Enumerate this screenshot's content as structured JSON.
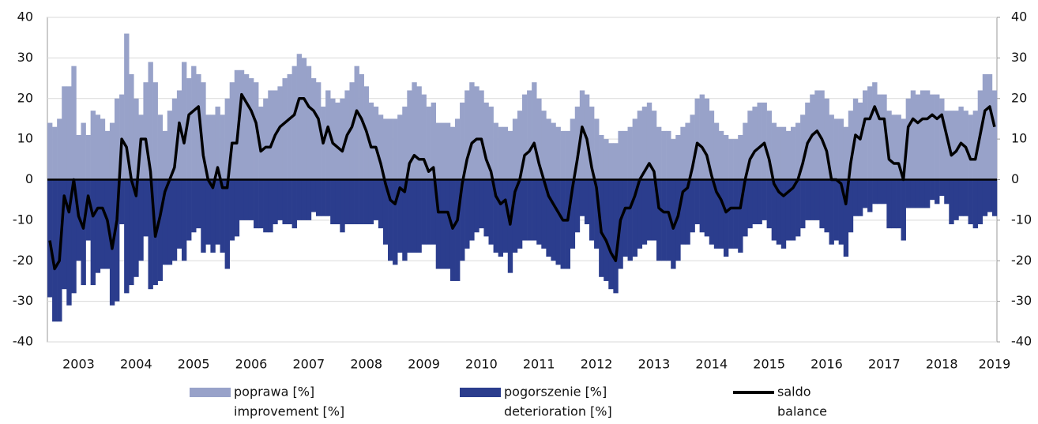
{
  "chart_data": {
    "type": "bar_line",
    "categories": [
      null,
      null,
      null,
      null,
      null,
      null,
      "2003",
      null,
      null,
      null,
      null,
      null,
      null,
      null,
      null,
      null,
      null,
      null,
      "2004",
      null,
      null,
      null,
      null,
      null,
      null,
      null,
      null,
      null,
      null,
      null,
      "2005",
      null,
      null,
      null,
      null,
      null,
      null,
      null,
      null,
      null,
      null,
      null,
      "2006",
      null,
      null,
      null,
      null,
      null,
      null,
      null,
      null,
      null,
      null,
      null,
      "2007",
      null,
      null,
      null,
      null,
      null,
      null,
      null,
      null,
      null,
      null,
      null,
      "2008",
      null,
      null,
      null,
      null,
      null,
      null,
      null,
      null,
      null,
      null,
      null,
      "2009",
      null,
      null,
      null,
      null,
      null,
      null,
      null,
      null,
      null,
      null,
      null,
      "2010",
      null,
      null,
      null,
      null,
      null,
      null,
      null,
      null,
      null,
      null,
      null,
      "2011",
      null,
      null,
      null,
      null,
      null,
      null,
      null,
      null,
      null,
      null,
      null,
      "2012",
      null,
      null,
      null,
      null,
      null,
      null,
      null,
      null,
      null,
      null,
      null,
      "2013",
      null,
      null,
      null,
      null,
      null,
      null,
      null,
      null,
      null,
      null,
      null,
      "2014",
      null,
      null,
      null,
      null,
      null,
      null,
      null,
      null,
      null,
      null,
      null,
      "2015",
      null,
      null,
      null,
      null,
      null,
      null,
      null,
      null,
      null,
      null,
      null,
      "2016",
      null,
      null,
      null,
      null,
      null,
      null,
      null,
      null,
      null,
      null,
      null,
      "2017",
      null,
      null,
      null,
      null,
      null,
      null,
      null,
      null,
      null,
      null,
      null,
      "2018",
      null,
      null,
      null,
      null,
      null,
      null,
      null,
      null,
      null,
      null,
      "2019"
    ],
    "series": [
      {
        "name": [
          "poprawa [%]",
          "improvement [%]"
        ],
        "kind": "bar",
        "color": "#98a2c9",
        "values": [
          14,
          13,
          15,
          23,
          23,
          28,
          11,
          14,
          11,
          17,
          16,
          15,
          12,
          14,
          20,
          21,
          36,
          26,
          20,
          16,
          24,
          29,
          24,
          16,
          12,
          17,
          20,
          22,
          29,
          25,
          28,
          26,
          24,
          16,
          16,
          18,
          16,
          20,
          24,
          27,
          27,
          26,
          25,
          24,
          18,
          20,
          22,
          22,
          23,
          25,
          26,
          28,
          31,
          30,
          28,
          25,
          24,
          18,
          22,
          20,
          19,
          20,
          22,
          24,
          28,
          26,
          23,
          19,
          18,
          16,
          15,
          15,
          15,
          16,
          18,
          22,
          24,
          23,
          21,
          18,
          19,
          14,
          14,
          14,
          13,
          15,
          19,
          22,
          24,
          23,
          22,
          19,
          18,
          14,
          13,
          13,
          12,
          15,
          17,
          21,
          22,
          24,
          20,
          17,
          15,
          14,
          13,
          12,
          12,
          15,
          18,
          22,
          21,
          18,
          15,
          11,
          10,
          9,
          9,
          12,
          12,
          13,
          15,
          17,
          18,
          19,
          17,
          13,
          12,
          12,
          10,
          11,
          13,
          14,
          16,
          20,
          21,
          20,
          17,
          14,
          12,
          11,
          10,
          10,
          11,
          14,
          17,
          18,
          19,
          19,
          17,
          14,
          13,
          13,
          12,
          13,
          14,
          16,
          19,
          21,
          22,
          22,
          20,
          16,
          15,
          15,
          13,
          17,
          20,
          19,
          22,
          23,
          24,
          21,
          21,
          17,
          16,
          16,
          15,
          20,
          22,
          21,
          22,
          22,
          21,
          21,
          20,
          17,
          17,
          17,
          18,
          17,
          16,
          17,
          22,
          26,
          26,
          22
        ]
      },
      {
        "name": [
          "pogorszenie [%]",
          "deterioration [%]"
        ],
        "kind": "bar",
        "color": "#2b3d8d",
        "values": [
          -29,
          -35,
          -35,
          -27,
          -31,
          -28,
          -20,
          -26,
          -15,
          -26,
          -23,
          -22,
          -22,
          -31,
          -30,
          -11,
          -28,
          -26,
          -24,
          -20,
          -14,
          -27,
          -26,
          -25,
          -21,
          -21,
          -20,
          -17,
          -20,
          -15,
          -13,
          -12,
          -18,
          -16,
          -18,
          -16,
          -18,
          -22,
          -15,
          -14,
          -10,
          -10,
          -10,
          -12,
          -12,
          -13,
          -13,
          -11,
          -10,
          -11,
          -11,
          -12,
          -10,
          -10,
          -10,
          -8,
          -9,
          -9,
          -9,
          -11,
          -11,
          -13,
          -11,
          -11,
          -11,
          -11,
          -11,
          -11,
          -10,
          -12,
          -16,
          -20,
          -21,
          -18,
          -20,
          -18,
          -18,
          -18,
          -16,
          -16,
          -16,
          -22,
          -22,
          -22,
          -25,
          -25,
          -20,
          -17,
          -15,
          -13,
          -12,
          -14,
          -16,
          -18,
          -19,
          -18,
          -23,
          -18,
          -17,
          -15,
          -15,
          -15,
          -16,
          -17,
          -19,
          -20,
          -21,
          -22,
          -22,
          -17,
          -13,
          -9,
          -11,
          -15,
          -17,
          -24,
          -25,
          -27,
          -28,
          -22,
          -19,
          -20,
          -19,
          -17,
          -16,
          -15,
          -15,
          -20,
          -20,
          -20,
          -22,
          -20,
          -16,
          -16,
          -13,
          -11,
          -13,
          -14,
          -16,
          -17,
          -17,
          -19,
          -17,
          -17,
          -18,
          -14,
          -12,
          -11,
          -11,
          -10,
          -12,
          -15,
          -16,
          -17,
          -15,
          -15,
          -14,
          -12,
          -10,
          -10,
          -10,
          -12,
          -13,
          -16,
          -15,
          -16,
          -19,
          -13,
          -9,
          -9,
          -7,
          -8,
          -6,
          -6,
          -6,
          -12,
          -12,
          -12,
          -15,
          -7,
          -7,
          -7,
          -7,
          -7,
          -5,
          -6,
          -4,
          -6,
          -11,
          -10,
          -9,
          -9,
          -11,
          -12,
          -11,
          -9,
          -8,
          -9
        ]
      },
      {
        "name": [
          "saldo",
          "balance"
        ],
        "kind": "line",
        "color": "#000000",
        "values": [
          -15,
          -22,
          -20,
          -4,
          -8,
          0,
          -9,
          -12,
          -4,
          -9,
          -7,
          -7,
          -10,
          -17,
          -10,
          10,
          8,
          0,
          -4,
          10,
          10,
          2,
          -14,
          -9,
          -3,
          0,
          3,
          14,
          9,
          16,
          17,
          18,
          6,
          0,
          -2,
          3,
          -2,
          -2,
          9,
          9,
          21,
          19,
          17,
          14,
          7,
          8,
          8,
          11,
          13,
          14,
          15,
          16,
          20,
          20,
          18,
          17,
          15,
          9,
          13,
          9,
          8,
          7,
          11,
          13,
          17,
          15,
          12,
          8,
          8,
          4,
          -1,
          -5,
          -6,
          -2,
          -3,
          4,
          6,
          5,
          5,
          2,
          3,
          -8,
          -8,
          -8,
          -12,
          -10,
          -1,
          5,
          9,
          10,
          10,
          5,
          2,
          -4,
          -6,
          -5,
          -11,
          -3,
          0,
          6,
          7,
          9,
          4,
          0,
          -4,
          -6,
          -8,
          -10,
          -10,
          -2,
          5,
          13,
          10,
          3,
          -2,
          -13,
          -15,
          -18,
          -20,
          -10,
          -7,
          -7,
          -4,
          0,
          2,
          4,
          2,
          -7,
          -8,
          -8,
          -12,
          -9,
          -3,
          -2,
          3,
          9,
          8,
          6,
          1,
          -3,
          -5,
          -8,
          -7,
          -7,
          -7,
          0,
          5,
          7,
          8,
          9,
          5,
          -1,
          -3,
          -4,
          -3,
          -2,
          0,
          4,
          9,
          11,
          12,
          10,
          7,
          0,
          0,
          -1,
          -6,
          4,
          11,
          10,
          15,
          15,
          18,
          15,
          15,
          5,
          4,
          4,
          0,
          13,
          15,
          14,
          15,
          15,
          16,
          15,
          16,
          11,
          6,
          7,
          9,
          8,
          5,
          5,
          11,
          17,
          18,
          13
        ]
      }
    ],
    "ylim": [
      -40,
      40
    ],
    "yticks": [
      -40,
      -30,
      -20,
      -10,
      0,
      10,
      20,
      30,
      40
    ],
    "y2lim": [
      -40,
      40
    ],
    "y2ticks": [
      -40,
      -30,
      -20,
      -10,
      0,
      10,
      20,
      30,
      40
    ],
    "grid": true,
    "legend": "bottom"
  }
}
